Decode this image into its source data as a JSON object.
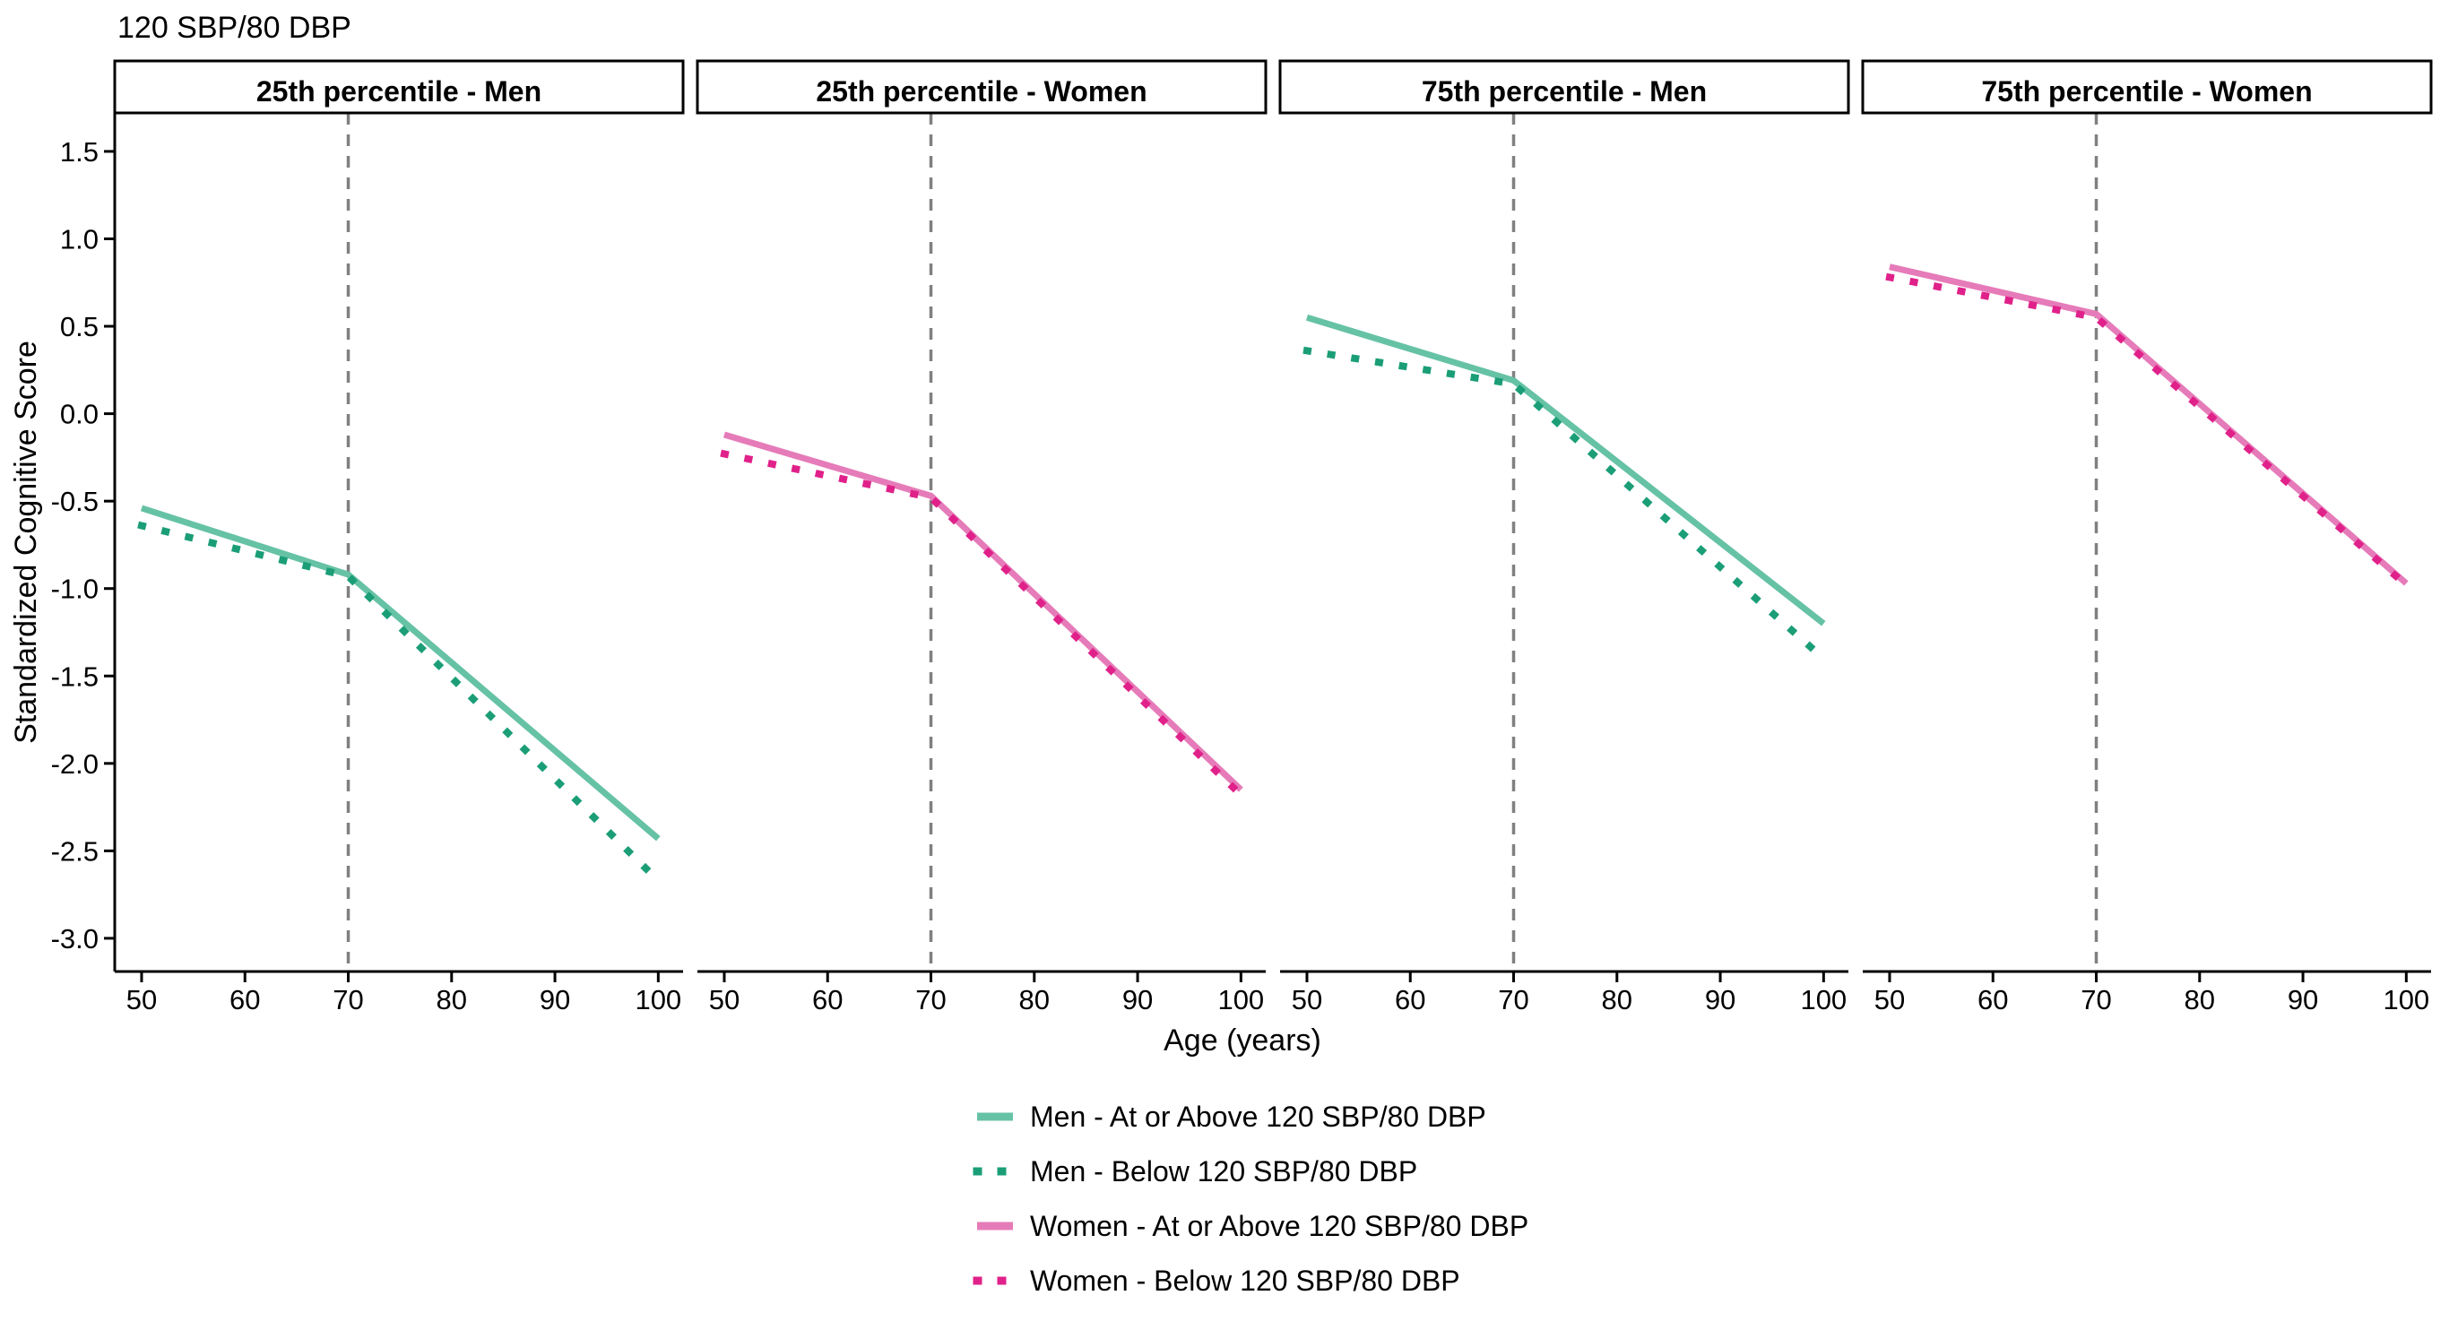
{
  "colors": {
    "men_solid": "#66C2A5",
    "men_dotted": "#1B9E77",
    "women_solid": "#E67BB9",
    "women_dotted": "#E0218A",
    "reference_line": "#808080",
    "axis": "#000000",
    "strip_border": "#000000",
    "strip_fill": "#FFFFFF"
  },
  "chart_data": {
    "type": "line",
    "title": "120 SBP/80 DBP",
    "xlabel": "Age (years)",
    "ylabel": "Standardized Cognitive Score",
    "xlim": [
      47.4,
      102.4
    ],
    "ylim": [
      -3.19,
      1.72
    ],
    "grid": false,
    "legend_position": "bottom",
    "vline_x": 70,
    "x": [
      50,
      70,
      100
    ],
    "x_tick_values": [
      50,
      60,
      70,
      80,
      90,
      100
    ],
    "x_tick_labels": [
      "50",
      "60",
      "70",
      "80",
      "90",
      "100"
    ],
    "y_tick_values": [
      1.5,
      1.0,
      0.5,
      0.0,
      -0.5,
      -1.0,
      -1.5,
      -2.0,
      -2.5,
      -3.0
    ],
    "y_tick_labels": [
      "1.5",
      "1.0",
      "0.5",
      "0.0",
      "-0.5",
      "-1.0",
      "-1.5",
      "-2.0",
      "-2.5",
      "-3.0"
    ],
    "facets": [
      {
        "label": "25th percentile - Men",
        "series": [
          {
            "name": "Men - At or Above 120 SBP/80 DBP",
            "color_key": "men_solid",
            "linestyle": "solid",
            "y": [
              -0.54,
              -0.92,
              -2.43
            ]
          },
          {
            "name": "Men - Below 120 SBP/80 DBP",
            "color_key": "men_dotted",
            "linestyle": "dotted",
            "y": [
              -0.64,
              -0.93,
              -2.67
            ]
          }
        ]
      },
      {
        "label": "25th percentile - Women",
        "series": [
          {
            "name": "Women - At or Above 120 SBP/80 DBP",
            "color_key": "women_solid",
            "linestyle": "solid",
            "y": [
              -0.12,
              -0.47,
              -2.15
            ]
          },
          {
            "name": "Women - Below 120 SBP/80 DBP",
            "color_key": "women_dotted",
            "linestyle": "dotted",
            "y": [
              -0.23,
              -0.48,
              -2.18
            ]
          }
        ]
      },
      {
        "label": "75th percentile - Men",
        "series": [
          {
            "name": "Men - At or Above 120 SBP/80 DBP",
            "color_key": "men_solid",
            "linestyle": "solid",
            "y": [
              0.55,
              0.19,
              -1.2
            ]
          },
          {
            "name": "Men - Below 120 SBP/80 DBP",
            "color_key": "men_dotted",
            "linestyle": "dotted",
            "y": [
              0.36,
              0.17,
              -1.4
            ]
          }
        ]
      },
      {
        "label": "75th percentile - Women",
        "series": [
          {
            "name": "Women - At or Above 120 SBP/80 DBP",
            "color_key": "women_solid",
            "linestyle": "solid",
            "y": [
              0.84,
              0.57,
              -0.97
            ]
          },
          {
            "name": "Women - Below 120 SBP/80 DBP",
            "color_key": "women_dotted",
            "linestyle": "dotted",
            "y": [
              0.78,
              0.55,
              -0.98
            ]
          }
        ]
      }
    ],
    "legend": [
      {
        "label": "Men - At or Above 120 SBP/80 DBP",
        "color_key": "men_solid",
        "linestyle": "solid"
      },
      {
        "label": "Men - Below 120 SBP/80 DBP",
        "color_key": "men_dotted",
        "linestyle": "dotted"
      },
      {
        "label": "Women - At or Above 120 SBP/80 DBP",
        "color_key": "women_solid",
        "linestyle": "solid"
      },
      {
        "label": "Women - Below 120 SBP/80 DBP",
        "color_key": "women_dotted",
        "linestyle": "dotted"
      }
    ]
  }
}
